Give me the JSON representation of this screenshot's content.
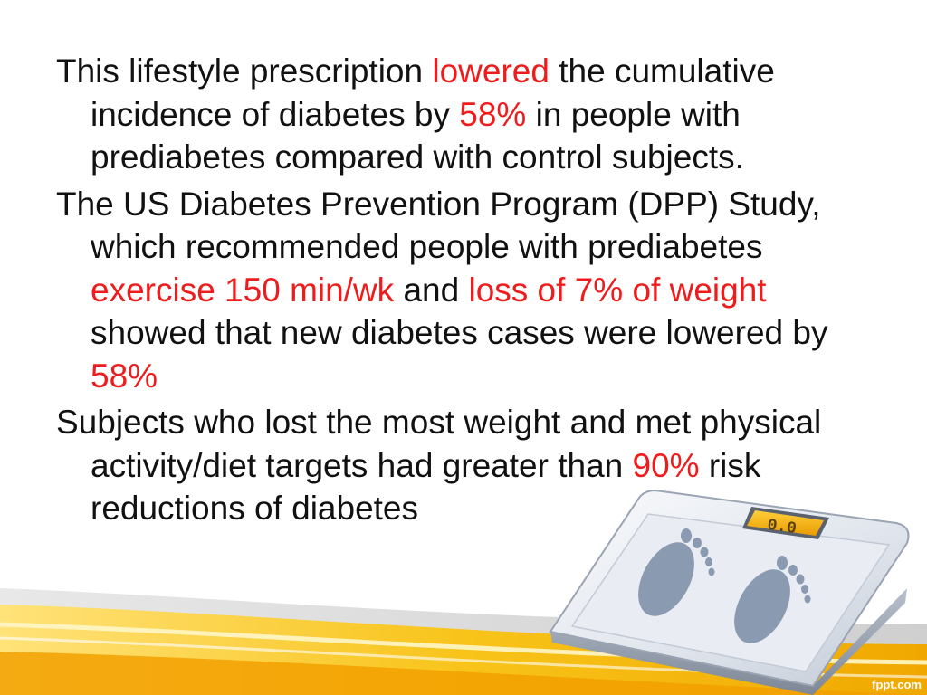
{
  "paragraphs": [
    {
      "segments": [
        {
          "text": "This lifestyle prescription ",
          "highlight": false
        },
        {
          "text": "lowered",
          "highlight": true
        },
        {
          "text": " the cumulative incidence of diabetes by ",
          "highlight": false
        },
        {
          "text": "58%",
          "highlight": true
        },
        {
          "text": " in people with prediabetes compared with control subjects.",
          "highlight": false
        }
      ]
    },
    {
      "segments": [
        {
          "text": "The US Diabetes Prevention Program (DPP) Study, which recommended people with prediabetes ",
          "highlight": false
        },
        {
          "text": "exercise 150 min/wk",
          "highlight": true
        },
        {
          "text": " and ",
          "highlight": false
        },
        {
          "text": "loss of 7% of weight",
          "highlight": true
        },
        {
          "text": " showed that new diabetes cases were lowered by ",
          "highlight": false
        },
        {
          "text": "58%",
          "highlight": true
        }
      ]
    },
    {
      "segments": [
        {
          "text": "Subjects who lost the most weight and met physical activity/diet targets had greater than ",
          "highlight": false
        },
        {
          "text": "90%",
          "highlight": true
        },
        {
          "text": " risk reductions of diabetes",
          "highlight": false
        }
      ]
    }
  ],
  "scale": {
    "display": "0.0"
  },
  "watermark": "fppt.com",
  "colors": {
    "text": "#111111",
    "highlight": "#ee1c1c",
    "wave_gold": "#f5b400",
    "wave_gold_light": "#ffd84a",
    "scale_display": "#f2a800",
    "scale_body": "#eef1f5",
    "footprint": "#8a9ab0"
  }
}
